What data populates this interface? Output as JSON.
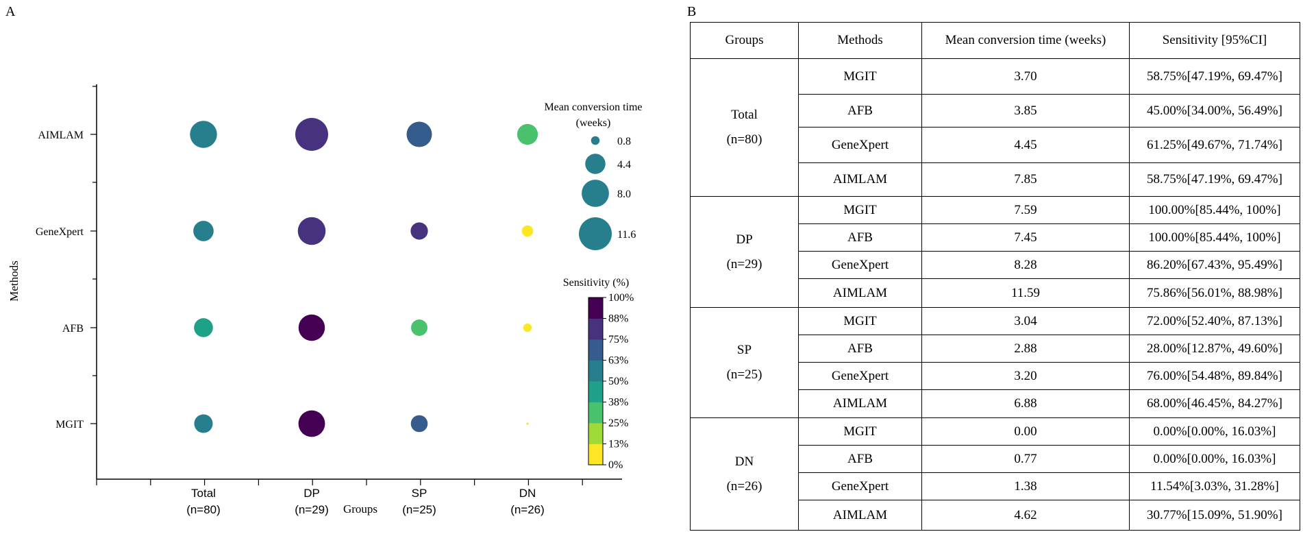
{
  "panel_a_label": "A",
  "panel_b_label": "B",
  "chart_data": {
    "type": "scatter",
    "subtype": "bubble",
    "xlabel": "Groups",
    "ylabel": "Methods",
    "categories": [
      "Total",
      "DP",
      "SP",
      "DN"
    ],
    "category_labels": [
      {
        "name": "Total",
        "n": "(n=80)"
      },
      {
        "name": "DP",
        "n": "(n=29)"
      },
      {
        "name": "SP",
        "n": "(n=25)"
      },
      {
        "name": "DN",
        "n": "(n=26)"
      }
    ],
    "methods": [
      "MGIT",
      "AFB",
      "GeneXpert",
      "AIMLAM"
    ],
    "series": [
      {
        "name": "MGIT",
        "time": [
          3.7,
          7.59,
          3.04,
          0.0
        ],
        "sensitivity": [
          58.75,
          100.0,
          72.0,
          0.0
        ]
      },
      {
        "name": "AFB",
        "time": [
          3.85,
          7.45,
          2.88,
          0.77
        ],
        "sensitivity": [
          45.0,
          100.0,
          28.0,
          0.0
        ]
      },
      {
        "name": "GeneXpert",
        "time": [
          4.45,
          8.28,
          3.2,
          1.38
        ],
        "sensitivity": [
          61.25,
          86.2,
          76.0,
          11.54
        ]
      },
      {
        "name": "AIMLAM",
        "time": [
          7.85,
          11.59,
          6.88,
          4.62
        ],
        "sensitivity": [
          58.75,
          75.86,
          68.0,
          30.77
        ]
      }
    ],
    "size_legend": {
      "title_line1": "Mean conversion time",
      "title_line2": "(weeks)",
      "values": [
        0.8,
        4.4,
        8.0,
        11.6
      ],
      "labels": [
        "0.8",
        "4.4",
        "8.0",
        "11.6"
      ],
      "color": "#277f8e"
    },
    "color_legend": {
      "title": "Sensitivity (%)",
      "ticks": [
        "100%",
        "88%",
        "75%",
        "63%",
        "50%",
        "38%",
        "25%",
        "13%",
        "0%"
      ],
      "colors_low_to_high": [
        "#fde725",
        "#a0da39",
        "#4ac16d",
        "#1fa187",
        "#277f8e",
        "#365c8d",
        "#46327e",
        "#440154"
      ]
    }
  },
  "table": {
    "headers": [
      "Groups",
      "Methods",
      "Mean conversion time (weeks)",
      "Sensitivity [95%CI]"
    ],
    "groups": [
      {
        "name": "Total",
        "n": "(n=80)",
        "rows": [
          {
            "method": "MGIT",
            "time": "3.70",
            "sens": "58.75%[47.19%, 69.47%]"
          },
          {
            "method": "AFB",
            "time": "3.85",
            "sens": "45.00%[34.00%, 56.49%]"
          },
          {
            "method": "GeneXpert",
            "time": "4.45",
            "sens": "61.25%[49.67%, 71.74%]"
          },
          {
            "method": "AIMLAM",
            "time": "7.85",
            "sens": "58.75%[47.19%, 69.47%]"
          }
        ]
      },
      {
        "name": "DP",
        "n": "(n=29)",
        "rows": [
          {
            "method": "MGIT",
            "time": "7.59",
            "sens": "100.00%[85.44%, 100%]"
          },
          {
            "method": "AFB",
            "time": "7.45",
            "sens": "100.00%[85.44%, 100%]"
          },
          {
            "method": "GeneXpert",
            "time": "8.28",
            "sens": "86.20%[67.43%, 95.49%]"
          },
          {
            "method": "AIMLAM",
            "time": "11.59",
            "sens": "75.86%[56.01%, 88.98%]"
          }
        ]
      },
      {
        "name": "SP",
        "n": "(n=25)",
        "rows": [
          {
            "method": "MGIT",
            "time": "3.04",
            "sens": "72.00%[52.40%, 87.13%]"
          },
          {
            "method": "AFB",
            "time": "2.88",
            "sens": "28.00%[12.87%, 49.60%]"
          },
          {
            "method": "GeneXpert",
            "time": "3.20",
            "sens": "76.00%[54.48%, 89.84%]"
          },
          {
            "method": "AIMLAM",
            "time": "6.88",
            "sens": "68.00%[46.45%, 84.27%]"
          }
        ]
      },
      {
        "name": "DN",
        "n": "(n=26)",
        "rows": [
          {
            "method": "MGIT",
            "time": "0.00",
            "sens": "0.00%[0.00%, 16.03%]"
          },
          {
            "method": "AFB",
            "time": "0.77",
            "sens": "0.00%[0.00%, 16.03%]"
          },
          {
            "method": "GeneXpert",
            "time": "1.38",
            "sens": "11.54%[3.03%, 31.28%]"
          },
          {
            "method": "AIMLAM",
            "time": "4.62",
            "sens": "30.77%[15.09%, 51.90%]"
          }
        ]
      }
    ]
  }
}
